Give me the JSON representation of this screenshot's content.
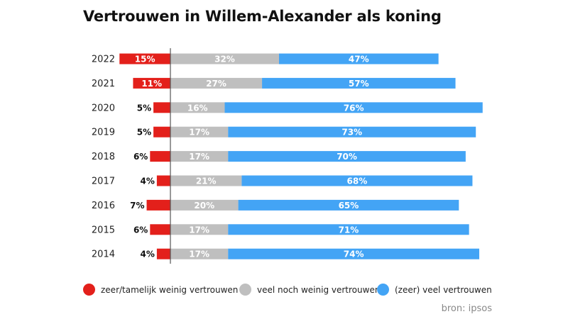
{
  "title": "Vertrouwen in Willem-Alexander als koning",
  "source": "bron: ipsos",
  "colors": {
    "low": "#e3201b",
    "neutral": "#bfbfbf",
    "high": "#43a4f5",
    "text": "#222222",
    "axis": "#555555"
  },
  "chart_data": {
    "type": "bar",
    "stacked": true,
    "orientation": "horizontal",
    "categories": [
      "2022",
      "2021",
      "2020",
      "2019",
      "2018",
      "2017",
      "2016",
      "2015",
      "2014"
    ],
    "series": [
      {
        "name": "zeer/tamelijk weinig vertrouwen",
        "color": "#e3201b",
        "values": [
          15,
          11,
          5,
          5,
          6,
          4,
          7,
          6,
          4
        ],
        "labels": [
          "15%",
          "11%",
          "5%",
          "5%",
          "6%",
          "4%",
          "7%",
          "6%",
          "4%"
        ]
      },
      {
        "name": "veel noch weinig vertrouwen",
        "color": "#bfbfbf",
        "values": [
          32,
          27,
          16,
          17,
          17,
          21,
          20,
          17,
          17
        ],
        "labels": [
          "32%",
          "27%",
          "16%",
          "17%",
          "17%",
          "21%",
          "20%",
          "17%",
          "17%"
        ]
      },
      {
        "name": "(zeer) veel vertrouwen",
        "color": "#43a4f5",
        "values": [
          47,
          57,
          76,
          73,
          70,
          68,
          65,
          71,
          74
        ],
        "labels": [
          "47%",
          "57%",
          "76%",
          "73%",
          "70%",
          "68%",
          "65%",
          "71%",
          "74%"
        ]
      }
    ],
    "xlabel": "",
    "ylabel": "",
    "legend_position": "bottom"
  }
}
